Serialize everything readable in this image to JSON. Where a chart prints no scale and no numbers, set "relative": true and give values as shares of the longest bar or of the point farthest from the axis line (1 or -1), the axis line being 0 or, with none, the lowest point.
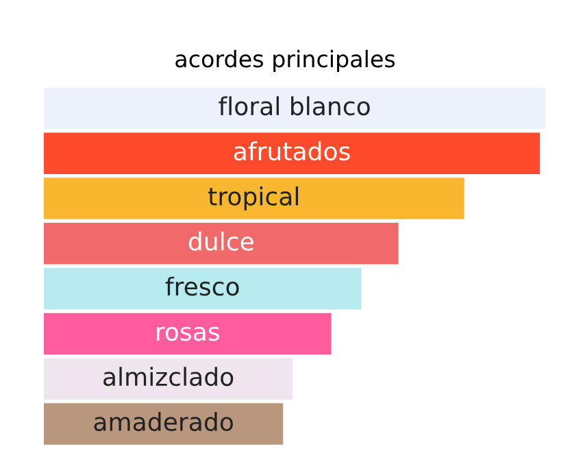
{
  "chart_data": {
    "type": "bar",
    "orientation": "horizontal",
    "relative": true,
    "title": "acordes principales",
    "categories": [
      "floral blanco",
      "afrutados",
      "tropical",
      "dulce",
      "fresco",
      "rosas",
      "almizclado",
      "amaderado"
    ],
    "values": [
      1,
      0.989,
      0.838,
      0.707,
      0.633,
      0.573,
      0.496,
      0.477
    ],
    "colors": [
      "#edf1fb",
      "#ff4b2b",
      "#f8b72e",
      "#f06a6a",
      "#b8ebf0",
      "#ff5c9e",
      "#efe5ef",
      "#b8977e"
    ],
    "legend": false
  }
}
